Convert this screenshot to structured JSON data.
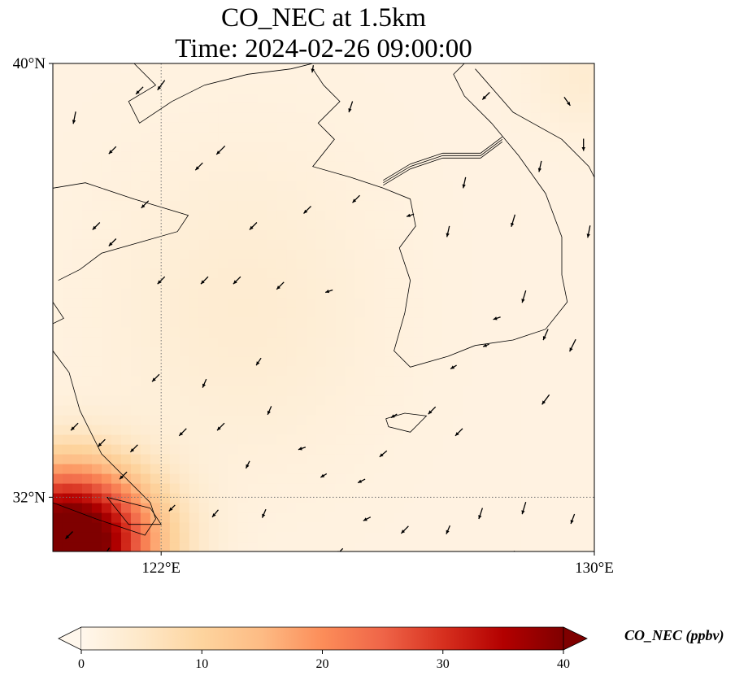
{
  "chart_data": {
    "type": "heatmap",
    "title_line1": "CO_NEC at 1.5km",
    "title_line2": "Time: 2024-02-26 09:00:00",
    "lon_range": [
      120,
      130
    ],
    "lat_range": [
      31,
      40
    ],
    "x_ticks": [
      {
        "value": 122,
        "label": "122°E"
      },
      {
        "value": 130,
        "label": "130°E"
      }
    ],
    "y_ticks": [
      {
        "value": 40,
        "label": "40°N"
      },
      {
        "value": 32,
        "label": "32°N"
      }
    ],
    "gridlines": {
      "lon": 122,
      "lat": 32,
      "style": "dotted"
    },
    "colorbar": {
      "label": "CO_NEC (ppbv)",
      "colormap": "OrRd",
      "vmin": 0,
      "vmax": 40,
      "extend": "both",
      "ticks": [
        0,
        10,
        20,
        30,
        40
      ],
      "colors": [
        "#fff7ec",
        "#fee8c8",
        "#fdd49e",
        "#fdbb84",
        "#fc8d59",
        "#ef6548",
        "#d7301f",
        "#b30000",
        "#7f0000"
      ]
    },
    "field_description": "Mostly low values (0-6 ppbv) across Yellow Sea and Korea; high values up to >40 ppbv in the southwest corner near the Yangtze River delta",
    "high_value_region": {
      "lon": 120.3,
      "lat": 31.2,
      "max_ppbv": 45
    },
    "wind_vectors": [
      [
        120.4,
        39.0,
        -0.2,
        -1.0
      ],
      [
        121.1,
        38.4,
        -0.6,
        -0.6
      ],
      [
        122.0,
        39.6,
        -0.6,
        -0.8
      ],
      [
        123.1,
        38.4,
        -0.7,
        -0.7
      ],
      [
        122.7,
        38.1,
        -0.6,
        -0.6
      ],
      [
        121.7,
        37.4,
        -0.6,
        -0.6
      ],
      [
        120.8,
        37.0,
        -0.6,
        -0.6
      ],
      [
        121.1,
        36.7,
        -0.6,
        -0.6
      ],
      [
        122.0,
        36.0,
        -0.6,
        -0.6
      ],
      [
        122.8,
        36.0,
        -0.6,
        -0.6
      ],
      [
        123.4,
        36.0,
        -0.6,
        -0.6
      ],
      [
        124.2,
        35.9,
        -0.6,
        -0.6
      ],
      [
        125.1,
        35.8,
        -0.6,
        -0.2
      ],
      [
        123.7,
        37.0,
        -0.6,
        -0.6
      ],
      [
        124.7,
        37.3,
        -0.6,
        -0.6
      ],
      [
        125.6,
        37.5,
        -0.6,
        -0.6
      ],
      [
        126.6,
        37.2,
        -0.6,
        -0.2
      ],
      [
        127.3,
        36.9,
        -0.2,
        -0.9
      ],
      [
        127.6,
        37.8,
        -0.2,
        -0.9
      ],
      [
        128.0,
        39.4,
        -0.6,
        -0.6
      ],
      [
        129.5,
        39.3,
        0.5,
        -0.7
      ],
      [
        129.8,
        38.5,
        0.0,
        -1.0
      ],
      [
        129.0,
        38.1,
        -0.2,
        -0.9
      ],
      [
        128.5,
        37.1,
        -0.3,
        -1.0
      ],
      [
        129.9,
        36.9,
        -0.2,
        -1.0
      ],
      [
        128.7,
        35.7,
        -0.3,
        -1.0
      ],
      [
        128.2,
        35.3,
        -0.6,
        -0.2
      ],
      [
        128.0,
        34.8,
        -0.5,
        -0.2
      ],
      [
        127.4,
        34.4,
        -0.5,
        -0.3
      ],
      [
        129.1,
        35.0,
        -0.4,
        -0.9
      ],
      [
        129.6,
        34.8,
        -0.5,
        -1.0
      ],
      [
        129.1,
        33.8,
        -0.6,
        -0.8
      ],
      [
        127.0,
        33.6,
        -0.6,
        -0.6
      ],
      [
        127.5,
        33.2,
        -0.6,
        -0.6
      ],
      [
        126.3,
        33.5,
        -0.5,
        -0.3
      ],
      [
        126.1,
        32.8,
        -0.6,
        -0.5
      ],
      [
        125.7,
        32.3,
        -0.6,
        -0.3
      ],
      [
        125.0,
        32.4,
        -0.5,
        -0.3
      ],
      [
        124.6,
        32.9,
        -0.6,
        -0.2
      ],
      [
        124.0,
        33.6,
        -0.3,
        -0.7
      ],
      [
        123.1,
        33.3,
        -0.6,
        -0.6
      ],
      [
        122.4,
        33.2,
        -0.6,
        -0.6
      ],
      [
        121.5,
        32.9,
        -0.6,
        -0.6
      ],
      [
        121.9,
        34.2,
        -0.6,
        -0.6
      ],
      [
        122.8,
        34.1,
        -0.3,
        -0.7
      ],
      [
        123.8,
        34.5,
        -0.4,
        -0.6
      ],
      [
        123.6,
        32.6,
        -0.3,
        -0.6
      ],
      [
        122.2,
        31.8,
        -0.5,
        -0.5
      ],
      [
        123.0,
        31.7,
        -0.5,
        -0.6
      ],
      [
        123.9,
        31.7,
        -0.3,
        -0.7
      ],
      [
        125.8,
        31.6,
        -0.6,
        -0.3
      ],
      [
        125.3,
        31.0,
        -0.5,
        -0.5
      ],
      [
        126.5,
        31.4,
        -0.6,
        -0.6
      ],
      [
        127.3,
        31.4,
        -0.3,
        -0.7
      ],
      [
        127.9,
        31.7,
        -0.3,
        -0.9
      ],
      [
        128.7,
        31.8,
        -0.3,
        -1.0
      ],
      [
        129.6,
        31.6,
        -0.3,
        -0.8
      ],
      [
        128.5,
        30.9,
        -0.2,
        -1.0
      ],
      [
        120.3,
        31.3,
        -0.6,
        -0.6
      ],
      [
        121.0,
        31.0,
        -0.4,
        -0.6
      ],
      [
        120.9,
        33.0,
        -0.6,
        -0.6
      ],
      [
        120.4,
        33.3,
        -0.6,
        -0.6
      ],
      [
        121.3,
        32.4,
        -0.6,
        -0.6
      ],
      [
        125.5,
        39.2,
        -0.3,
        -0.9
      ],
      [
        121.6,
        39.5,
        -0.6,
        -0.6
      ],
      [
        124.8,
        39.9,
        -0.1,
        -0.6
      ]
    ]
  }
}
